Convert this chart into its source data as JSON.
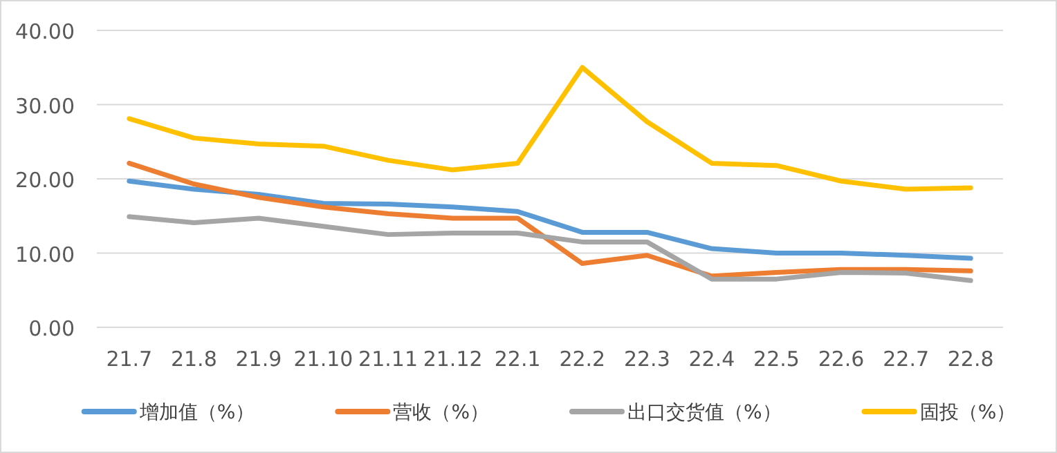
{
  "chart_data": {
    "type": "line",
    "categories": [
      "21.7",
      "21.8",
      "21.9",
      "21.10",
      "21.11",
      "21.12",
      "22.1",
      "22.2",
      "22.3",
      "22.4",
      "22.5",
      "22.6",
      "22.7",
      "22.8"
    ],
    "series": [
      {
        "name": "增加值（%）",
        "color": "#5b9bd5",
        "values": [
          19.7,
          18.6,
          17.9,
          16.7,
          16.6,
          16.2,
          15.6,
          12.8,
          12.8,
          10.6,
          10.0,
          10.0,
          9.7,
          9.3
        ]
      },
      {
        "name": "营收（%）",
        "color": "#ed7d31",
        "values": [
          22.1,
          19.3,
          17.5,
          16.2,
          15.3,
          14.7,
          14.7,
          8.6,
          9.7,
          6.9,
          7.4,
          7.8,
          7.8,
          7.6
        ]
      },
      {
        "name": "出口交货值（%）",
        "color": "#a5a5a5",
        "values": [
          14.9,
          14.1,
          14.7,
          13.6,
          12.5,
          12.7,
          12.7,
          11.5,
          11.5,
          6.5,
          6.5,
          7.4,
          7.3,
          6.3
        ]
      },
      {
        "name": "固投（%）",
        "color": "#ffc000",
        "values": [
          28.1,
          25.5,
          24.7,
          24.4,
          22.5,
          21.2,
          22.1,
          35.0,
          27.7,
          22.1,
          21.8,
          19.7,
          18.6,
          18.8
        ]
      }
    ],
    "ylim": [
      0,
      40
    ],
    "yticks": [
      {
        "value": 0,
        "label": "0.00"
      },
      {
        "value": 10,
        "label": "10.00"
      },
      {
        "value": 20,
        "label": "20.00"
      },
      {
        "value": 30,
        "label": "30.00"
      },
      {
        "value": 40,
        "label": "40.00"
      }
    ],
    "grid": "y",
    "legend": "bottom",
    "marker": "none",
    "line_style": "solid"
  }
}
